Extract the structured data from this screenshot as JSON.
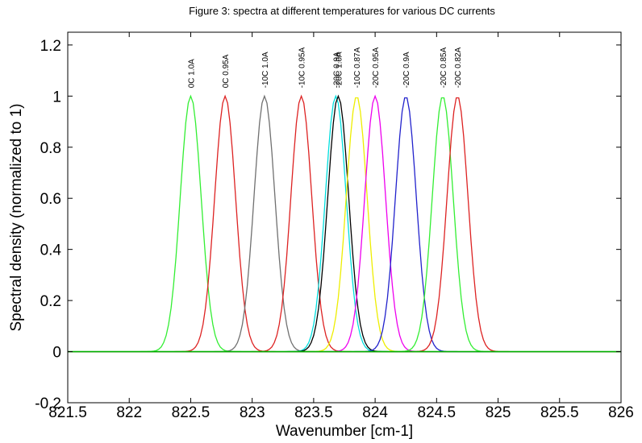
{
  "chart_data": {
    "type": "line",
    "title": "Figure 3: spectra at different temperatures for various DC currents",
    "xlabel": "Wavenumber [cm-1]",
    "ylabel": "Spectral density (normalized to 1)",
    "xlim": [
      821.5,
      826
    ],
    "ylim": [
      -0.2,
      1.25
    ],
    "xticks": [
      "821.5",
      "822",
      "822.5",
      "823",
      "823.5",
      "824",
      "824.5",
      "825",
      "825.5",
      "826"
    ],
    "yticks": [
      "-0.2",
      "0",
      "0.2",
      "0.4",
      "0.6",
      "0.8",
      "1",
      "1.2"
    ],
    "grid": false,
    "baseline_color": "#00b000",
    "series": [
      {
        "name": "0C 1.0A",
        "center": 822.5,
        "color": "#33ee33"
      },
      {
        "name": "0C 0.95A",
        "center": 822.78,
        "color": "#dd2222"
      },
      {
        "name": "-10C 1.0A",
        "center": 823.1,
        "color": "#707070"
      },
      {
        "name": "-10C 0.95A",
        "center": 823.4,
        "color": "#dd2222"
      },
      {
        "name": "-20C 0.9A",
        "center": 823.68,
        "color": "#00dddd"
      },
      {
        "name": "-20C 1.0A",
        "center": 823.7,
        "color": "#000000"
      },
      {
        "name": "-10C 0.87A",
        "center": 823.85,
        "color": "#eeee00"
      },
      {
        "name": "-20C 0.95A",
        "center": 824.0,
        "color": "#ee00ee"
      },
      {
        "name": "-20C 0.9A",
        "center": 824.25,
        "color": "#2222cc"
      },
      {
        "name": "-20C 0.85A",
        "center": 824.55,
        "color": "#33ee33"
      },
      {
        "name": "-20C 0.82A",
        "center": 824.67,
        "color": "#dd2222"
      }
    ]
  }
}
